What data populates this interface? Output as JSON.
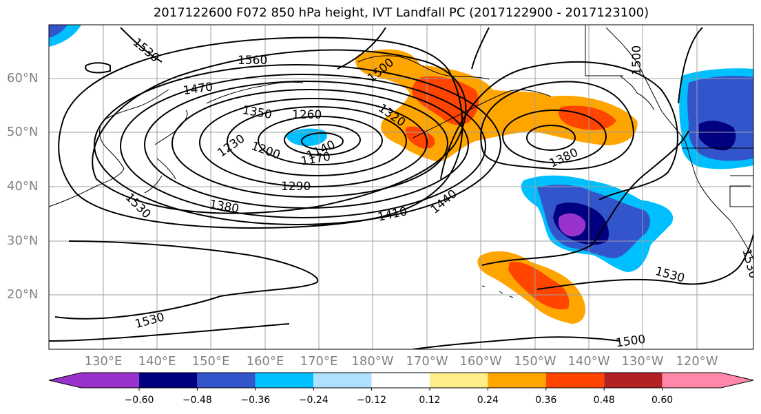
{
  "title": "2017122600 F072 850 hPa height, IVT Landfall PC (2017122900 - 2017123100)",
  "lat_labels": [
    "60°N",
    "50°N",
    "40°N",
    "30°N",
    "20°N"
  ],
  "lon_labels": [
    "130°E",
    "140°E",
    "150°E",
    "160°E",
    "170°E",
    "180°W",
    "170°W",
    "160°W",
    "150°W",
    "140°W",
    "130°W",
    "120°W"
  ],
  "contour_labels": [
    "1530",
    "1560",
    "1470",
    "1500",
    "1500",
    "1350",
    "1260",
    "1230",
    "1200",
    "1140",
    "1170",
    "1320",
    "1380",
    "1290",
    "1380",
    "1410",
    "1440",
    "1530",
    "1530",
    "1500",
    "1530",
    "1530"
  ],
  "colorbar": {
    "ticks": [
      "−0.60",
      "−0.48",
      "−0.36",
      "−0.24",
      "−0.12",
      "0.12",
      "0.24",
      "0.36",
      "0.48",
      "0.60"
    ],
    "colors": [
      "#9933cc",
      "#000080",
      "#3355cc",
      "#00bfff",
      "#b0e0ff",
      "#ffffff",
      "#ffee88",
      "#ffa500",
      "#ff4500",
      "#b22222",
      "#ff88aa"
    ]
  }
}
